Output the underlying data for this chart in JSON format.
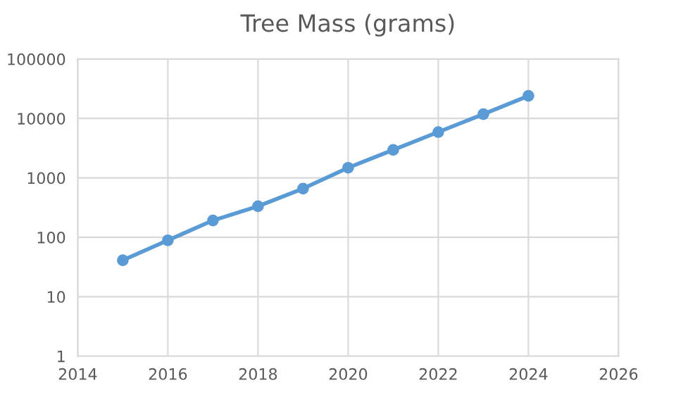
{
  "chart_data": {
    "type": "line",
    "title": "Tree Mass (grams)",
    "x": [
      2015,
      2016,
      2017,
      2018,
      2019,
      2020,
      2021,
      2022,
      2023,
      2024
    ],
    "series": [
      {
        "color": "#5b9bd5",
        "values": [
          41,
          89,
          192,
          333,
          660,
          1480,
          2950,
          5900,
          11800,
          24000
        ]
      }
    ],
    "xlim": [
      2014,
      2026
    ],
    "xticks": [
      2014,
      2016,
      2018,
      2020,
      2022,
      2024,
      2026
    ],
    "ylim": [
      1,
      100000
    ],
    "yticks": [
      1,
      10,
      100,
      1000,
      10000,
      100000
    ],
    "log": "y",
    "grid": true,
    "marker": "circle",
    "line_style": "solid"
  }
}
